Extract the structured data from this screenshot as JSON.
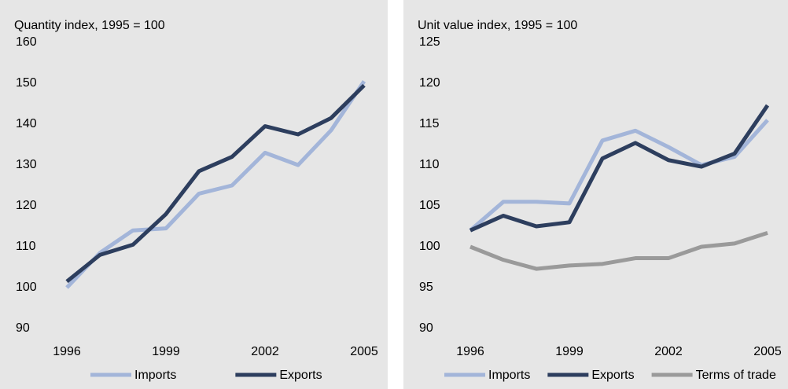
{
  "chart_data": [
    {
      "type": "line",
      "y_label": "Quantity index, 1995 = 100",
      "x": [
        1996,
        1997,
        1998,
        1999,
        2000,
        2001,
        2002,
        2003,
        2004,
        2005
      ],
      "xlim": [
        1995.5,
        2005.5
      ],
      "xticks": [
        1996,
        1999,
        2002,
        2005
      ],
      "ylim": [
        90,
        160
      ],
      "yticks": [
        90,
        100,
        110,
        120,
        130,
        140,
        150,
        160
      ],
      "series": [
        {
          "name": "Imports",
          "color": "#a3b5d9",
          "values": [
            100,
            108.5,
            114,
            114.5,
            123,
            125,
            133,
            130,
            138.5,
            150.5
          ]
        },
        {
          "name": "Exports",
          "color": "#2d3e5e",
          "values": [
            101.5,
            108,
            110.5,
            118,
            128.5,
            132,
            139.5,
            137.5,
            141.5,
            149.5
          ]
        }
      ]
    },
    {
      "type": "line",
      "y_label": "Unit value index, 1995 = 100",
      "x": [
        1996,
        1997,
        1998,
        1999,
        2000,
        2001,
        2002,
        2003,
        2004,
        2005
      ],
      "xlim": [
        1995.5,
        2005.5
      ],
      "xticks": [
        1996,
        1999,
        2002,
        2005
      ],
      "ylim": [
        90,
        125
      ],
      "yticks": [
        90,
        95,
        100,
        105,
        110,
        115,
        120,
        125
      ],
      "series": [
        {
          "name": "Imports",
          "color": "#a3b5d9",
          "values": [
            102,
            105.5,
            105.5,
            105.3,
            113,
            114.2,
            112.2,
            110,
            111,
            115.5
          ]
        },
        {
          "name": "Exports",
          "color": "#2d3e5e",
          "values": [
            102,
            103.8,
            102.5,
            103,
            110.8,
            112.7,
            110.6,
            109.8,
            111.4,
            117.3
          ]
        },
        {
          "name": "Terms of trade",
          "color": "#9a9a9a",
          "values": [
            100,
            98.4,
            97.3,
            97.7,
            97.9,
            98.6,
            98.6,
            100,
            100.4,
            101.7
          ]
        }
      ]
    }
  ]
}
